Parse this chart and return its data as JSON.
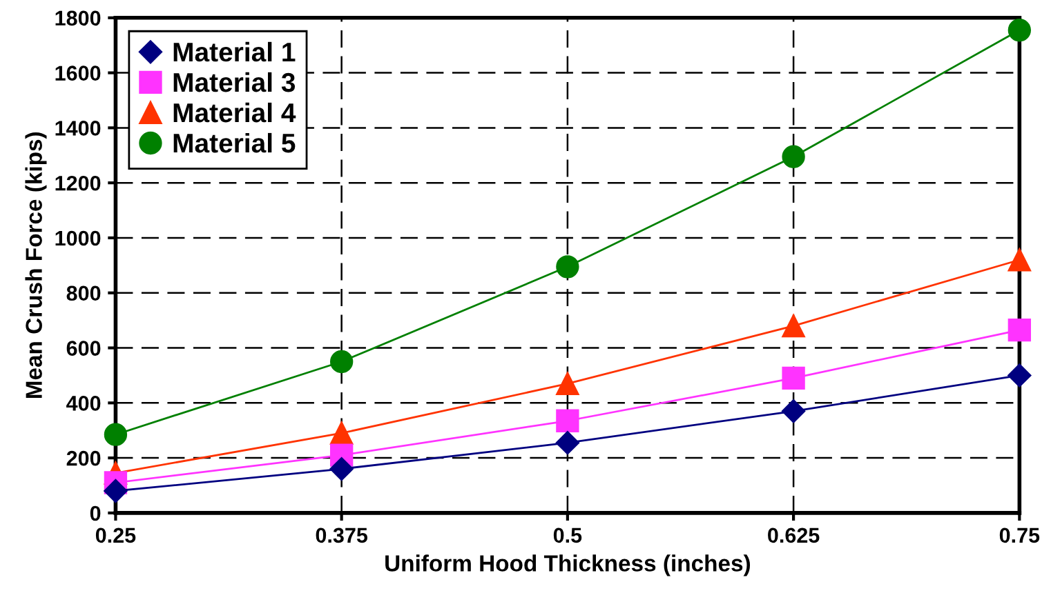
{
  "chart_data": {
    "type": "line",
    "xlabel": "Uniform Hood Thickness (inches)",
    "ylabel": "Mean Crush Force (kips)",
    "x": [
      0.25,
      0.375,
      0.5,
      0.625,
      0.75
    ],
    "series": [
      {
        "name": "Material 1",
        "color": "#000080",
        "marker": "diamond",
        "values": [
          80,
          160,
          255,
          370,
          500
        ]
      },
      {
        "name": "Material 3",
        "color": "#ff33ff",
        "marker": "square",
        "values": [
          110,
          210,
          335,
          490,
          665
        ]
      },
      {
        "name": "Material 4",
        "color": "#ff3300",
        "marker": "triangle",
        "values": [
          145,
          290,
          470,
          680,
          920
        ]
      },
      {
        "name": "Material 5",
        "color": "#008000",
        "marker": "circle",
        "values": [
          285,
          550,
          895,
          1295,
          1755
        ]
      }
    ],
    "xlim": [
      0.25,
      0.75
    ],
    "xticks": [
      0.25,
      0.375,
      0.5,
      0.625,
      0.75
    ],
    "ylim": [
      0,
      1800
    ],
    "yticks": [
      0,
      200,
      400,
      600,
      800,
      1000,
      1200,
      1400,
      1600,
      1800
    ],
    "grid": true,
    "legend": "top left",
    "line_style": "solid"
  }
}
